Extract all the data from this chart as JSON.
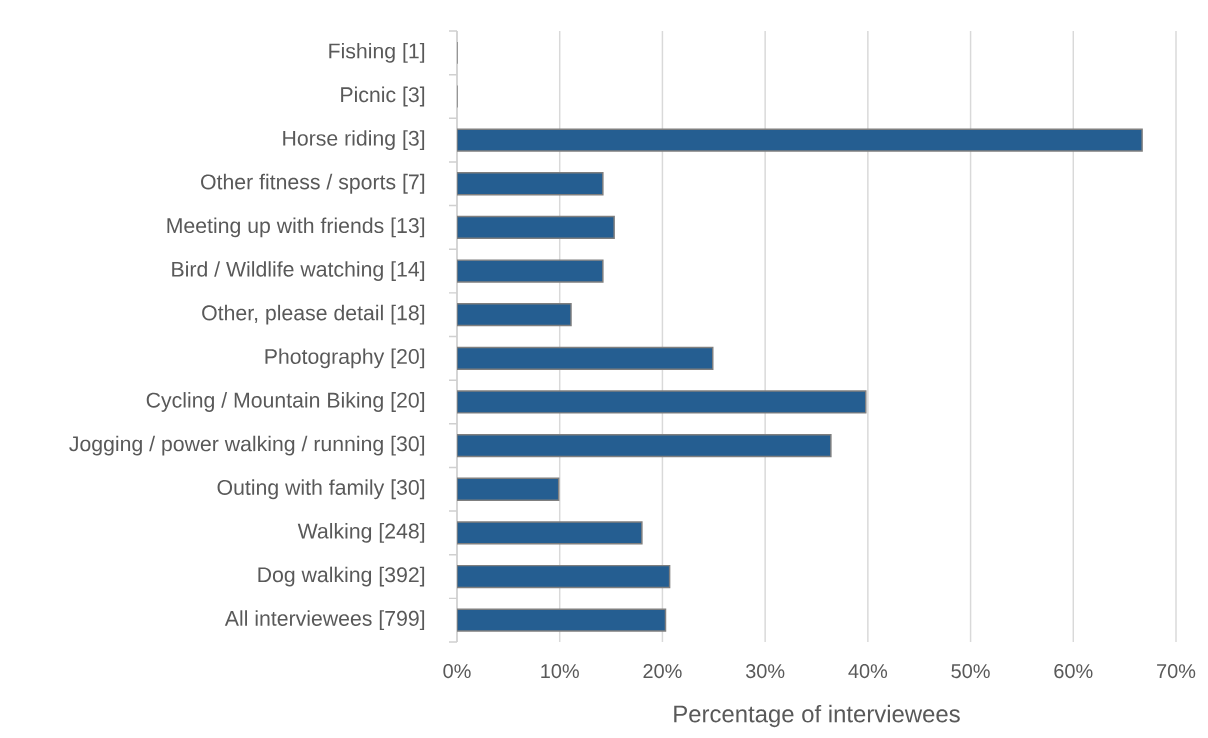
{
  "chart_data": {
    "type": "bar",
    "orientation": "horizontal",
    "categories": [
      "Fishing [1]",
      "Picnic [3]",
      "Horse riding [3]",
      "Other fitness / sports [7]",
      "Meeting up with friends [13]",
      "Bird / Wildlife watching [14]",
      "Other, please detail [18]",
      "Photography [20]",
      "Cycling / Mountain Biking [20]",
      "Jogging / power walking / running [30]",
      "Outing with family [30]",
      "Walking [248]",
      "Dog walking [392]",
      "All interviewees [799]"
    ],
    "values": [
      0,
      0,
      66.7,
      14.2,
      15.3,
      14.2,
      11.1,
      24.9,
      39.8,
      36.4,
      9.9,
      18.0,
      20.7,
      20.3
    ],
    "color": "#255e91",
    "xlabel": "Percentage of interviewees",
    "xlim": [
      0,
      70
    ],
    "xticks": [
      {
        "value": 0,
        "label": "0%"
      },
      {
        "value": 10,
        "label": "10%"
      },
      {
        "value": 20,
        "label": "20%"
      },
      {
        "value": 30,
        "label": "30%"
      },
      {
        "value": 40,
        "label": "40%"
      },
      {
        "value": 50,
        "label": "50%"
      },
      {
        "value": 60,
        "label": "60%"
      },
      {
        "value": 70,
        "label": "70%"
      }
    ],
    "grid": "x"
  }
}
